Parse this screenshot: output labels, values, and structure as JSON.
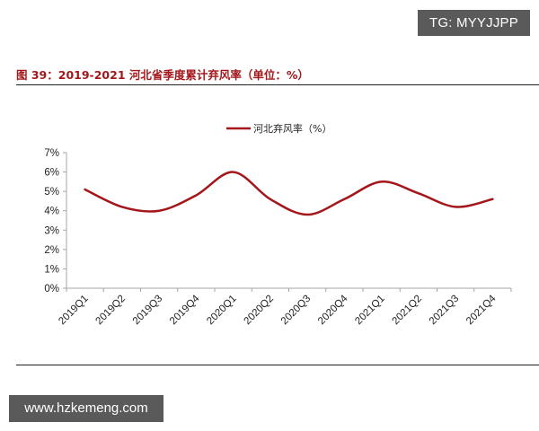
{
  "watermark_top": "TG: MYYJJPP",
  "watermark_bottom": "www.hzkemeng.com",
  "figure": {
    "title": "图 39：2019-2021 河北省季度累计弃风率（单位：%）",
    "title_color": "#a3171b"
  },
  "chart_data": {
    "type": "line",
    "title": "图 39：2019-2021 河北省季度累计弃风率（单位：%）",
    "xlabel": "",
    "ylabel": "",
    "categories": [
      "2019Q1",
      "2019Q2",
      "2019Q3",
      "2019Q4",
      "2020Q1",
      "2020Q2",
      "2020Q3",
      "2020Q4",
      "2021Q1",
      "2021Q2",
      "2021Q3",
      "2021Q4"
    ],
    "series": [
      {
        "name": "河北弃风率（%）",
        "color": "#a3171b",
        "smooth": true,
        "values": [
          5.1,
          4.2,
          4.0,
          4.8,
          6.0,
          4.6,
          3.8,
          4.6,
          5.5,
          4.9,
          4.2,
          4.6
        ]
      }
    ],
    "ylim": [
      0,
      7
    ],
    "yticks": [
      "0%",
      "1%",
      "2%",
      "3%",
      "4%",
      "5%",
      "6%",
      "7%"
    ],
    "grid": false,
    "legend_position": "top-center"
  }
}
